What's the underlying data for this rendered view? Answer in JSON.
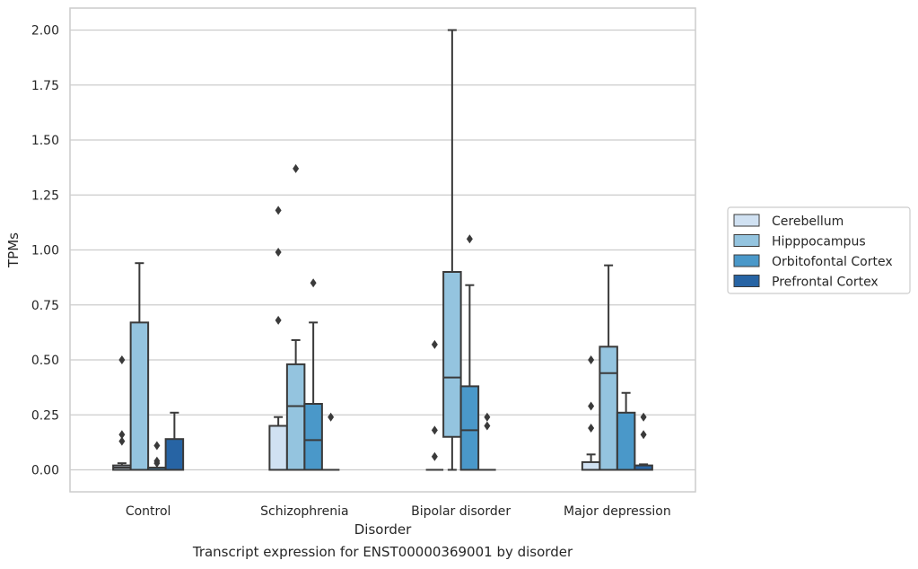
{
  "caption": "Transcript expression for ENST00000369001 by disorder",
  "chart_data": {
    "type": "box",
    "xlabel": "Disorder",
    "ylabel": "TPMs",
    "ylim": [
      -0.1,
      2.1
    ],
    "yticks": [
      "0.00",
      "0.25",
      "0.50",
      "0.75",
      "1.00",
      "1.25",
      "1.50",
      "1.75",
      "2.00"
    ],
    "ytick_values": [
      0,
      0.25,
      0.5,
      0.75,
      1.0,
      1.25,
      1.5,
      1.75,
      2.0
    ],
    "grid": true,
    "legend_position": "right",
    "categories": [
      "Control",
      "Schizophrenia",
      "Bipolar disorder",
      "Major depression"
    ],
    "series": [
      {
        "name": "Cerebellum",
        "color": "#d0e1f2",
        "boxes": [
          {
            "whislo": 0,
            "q1": 0,
            "med": 0.01,
            "q3": 0.02,
            "whishi": 0.03,
            "fliers": [
              0.5,
              0.16,
              0.13
            ]
          },
          {
            "whislo": 0,
            "q1": 0,
            "med": 0.2,
            "q3": 0.2,
            "whishi": 0.24,
            "fliers": [
              1.18,
              0.99,
              0.68
            ]
          },
          {
            "whislo": 0,
            "q1": 0,
            "med": 0,
            "q3": 0,
            "whishi": 0,
            "fliers": [
              0.57,
              0.18,
              0.06
            ]
          },
          {
            "whislo": 0,
            "q1": 0,
            "med": 0,
            "q3": 0.035,
            "whishi": 0.07,
            "fliers": [
              0.5,
              0.29,
              0.19
            ]
          }
        ]
      },
      {
        "name": "Hipppocampus",
        "color": "#94c4df",
        "boxes": [
          {
            "whislo": 0,
            "q1": 0,
            "med": 0,
            "q3": 0.67,
            "whishi": 0.94,
            "fliers": []
          },
          {
            "whislo": 0,
            "q1": 0,
            "med": 0.29,
            "q3": 0.48,
            "whishi": 0.59,
            "fliers": [
              1.37
            ]
          },
          {
            "whislo": 0,
            "q1": 0.15,
            "med": 0.42,
            "q3": 0.9,
            "whishi": 2.0,
            "fliers": []
          },
          {
            "whislo": 0,
            "q1": 0,
            "med": 0.44,
            "q3": 0.56,
            "whishi": 0.93,
            "fliers": []
          }
        ]
      },
      {
        "name": "Orbitofontal Cortex",
        "color": "#4a98c9",
        "boxes": [
          {
            "whislo": 0,
            "q1": 0,
            "med": 0,
            "q3": 0.01,
            "whishi": 0.01,
            "fliers": [
              0.11,
              0.04,
              0.03
            ]
          },
          {
            "whislo": 0,
            "q1": 0,
            "med": 0.135,
            "q3": 0.3,
            "whishi": 0.67,
            "fliers": [
              0.85
            ]
          },
          {
            "whislo": 0,
            "q1": 0,
            "med": 0.18,
            "q3": 0.38,
            "whishi": 0.84,
            "fliers": [
              1.05
            ]
          },
          {
            "whislo": 0,
            "q1": 0,
            "med": 0,
            "q3": 0.26,
            "whishi": 0.35,
            "fliers": []
          }
        ]
      },
      {
        "name": "Prefrontal Cortex",
        "color": "#2764a4",
        "boxes": [
          {
            "whislo": 0,
            "q1": 0,
            "med": 0,
            "q3": 0.14,
            "whishi": 0.26,
            "fliers": []
          },
          {
            "whislo": 0,
            "q1": 0,
            "med": 0,
            "q3": 0,
            "whishi": 0,
            "fliers": [
              0.24
            ]
          },
          {
            "whislo": 0,
            "q1": 0,
            "med": 0,
            "q3": 0,
            "whishi": 0,
            "fliers": [
              0.24,
              0.2
            ]
          },
          {
            "whislo": 0,
            "q1": 0,
            "med": 0,
            "q3": 0.02,
            "whishi": 0.025,
            "fliers": [
              0.24,
              0.16
            ]
          }
        ]
      }
    ]
  }
}
